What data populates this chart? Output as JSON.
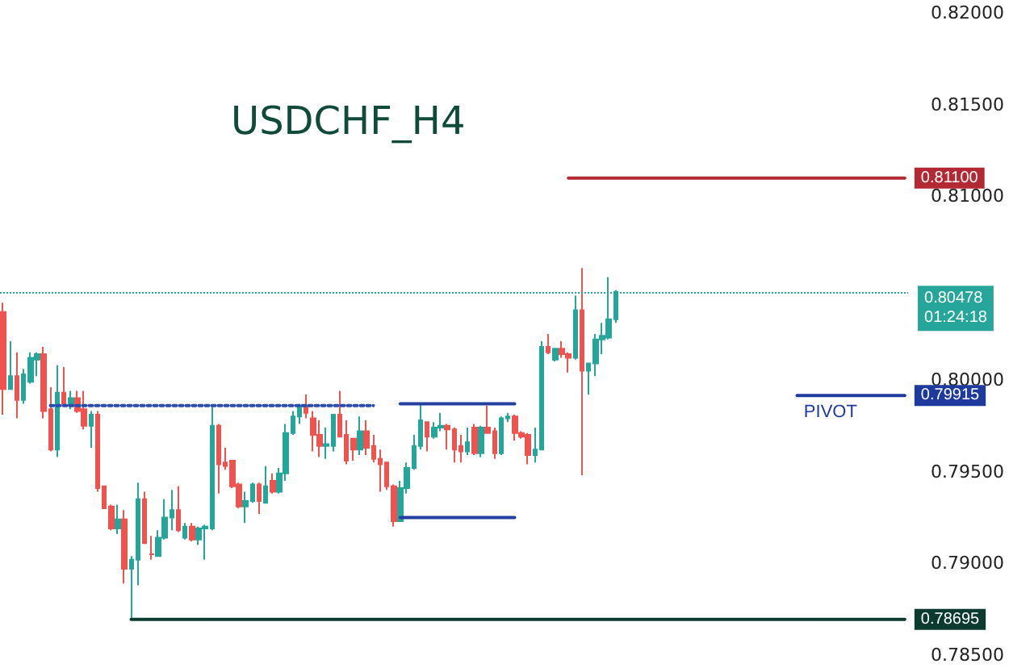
{
  "chart_data": {
    "type": "candlestick",
    "title": "USDCHF_H4",
    "categories": [
      null,
      null,
      null,
      null,
      null,
      null,
      null,
      null,
      null,
      null,
      null,
      null,
      null,
      null,
      null,
      null,
      null,
      null,
      null,
      null,
      null,
      null,
      null,
      null,
      null,
      null,
      null,
      null,
      null,
      null,
      null,
      null,
      null,
      null,
      null,
      null,
      null,
      null,
      null,
      null,
      null,
      null,
      null,
      null,
      null,
      null,
      null,
      null,
      null,
      null,
      null,
      null,
      null,
      null,
      null,
      null,
      null,
      null,
      null,
      null,
      null,
      null,
      null,
      null,
      null,
      null,
      null,
      null,
      null,
      null,
      null,
      null,
      null,
      null,
      null,
      null,
      null,
      null,
      null,
      null,
      null,
      null,
      null,
      null,
      null,
      null,
      null,
      null,
      null,
      null,
      null,
      null,
      null,
      null,
      null,
      null,
      null,
      null,
      null,
      null,
      null,
      null,
      null,
      null,
      null,
      null,
      null,
      null,
      null,
      null,
      null,
      null,
      null,
      null,
      null,
      null,
      null,
      null,
      null,
      null,
      null,
      null,
      null,
      null,
      null,
      null,
      null,
      null,
      null,
      null,
      null,
      null,
      null,
      null,
      null
    ],
    "ohlc": [
      [
        0.8037,
        0.8042,
        0.7981,
        0.7995
      ],
      [
        0.7995,
        0.8021,
        0.7995,
        0.8002
      ],
      [
        0.8002,
        0.8015,
        0.7979,
        0.7989
      ],
      [
        0.7989,
        0.8006,
        0.7987,
        0.8003
      ],
      [
        0.7999,
        0.8015,
        0.7998,
        0.8012
      ],
      [
        0.8011,
        0.8015,
        0.8002,
        0.8014
      ],
      [
        0.8014,
        0.8018,
        0.7979,
        0.7983
      ],
      [
        0.7984,
        0.7996,
        0.7961,
        0.7962
      ],
      [
        0.7962,
        0.8008,
        0.7958,
        0.7993
      ],
      [
        0.7993,
        0.8007,
        0.7986,
        0.7987
      ],
      [
        0.7986,
        0.7994,
        0.7984,
        0.799
      ],
      [
        0.799,
        0.7994,
        0.7982,
        0.7983
      ],
      [
        0.7984,
        0.7994,
        0.7973,
        0.7975
      ],
      [
        0.7975,
        0.7983,
        0.7963,
        0.7981
      ],
      [
        0.7981,
        0.7983,
        0.7939,
        0.7941
      ],
      [
        0.7942,
        0.7942,
        0.793,
        0.793
      ],
      [
        0.7931,
        0.7932,
        0.7918,
        0.7919
      ],
      [
        0.7919,
        0.7932,
        0.7916,
        0.7924
      ],
      [
        0.7924,
        0.7929,
        0.7889,
        0.7897
      ],
      [
        0.7897,
        0.7904,
        0.787,
        0.7902
      ],
      [
        0.7902,
        0.7944,
        0.7888,
        0.7935
      ],
      [
        0.7935,
        0.7939,
        0.7911,
        0.7911
      ],
      [
        0.7905,
        0.7915,
        0.7902,
        0.7905
      ],
      [
        0.7904,
        0.7918,
        0.7904,
        0.7914
      ],
      [
        0.7914,
        0.7935,
        0.7913,
        0.7925
      ],
      [
        0.7925,
        0.794,
        0.7918,
        0.7929
      ],
      [
        0.7929,
        0.7942,
        0.7917,
        0.7918
      ],
      [
        0.7914,
        0.7922,
        0.7913,
        0.792
      ],
      [
        0.792,
        0.7922,
        0.7912,
        0.7913
      ],
      [
        0.7913,
        0.792,
        0.791,
        0.7919
      ],
      [
        0.7919,
        0.7921,
        0.7902,
        0.792
      ],
      [
        0.7919,
        0.7986,
        0.7918,
        0.7975
      ],
      [
        0.7975,
        0.7976,
        0.7938,
        0.7954
      ],
      [
        0.7955,
        0.7963,
        0.7951,
        0.7953
      ],
      [
        0.7956,
        0.7956,
        0.7941,
        0.7942
      ],
      [
        0.7943,
        0.7944,
        0.793,
        0.7931
      ],
      [
        0.7931,
        0.7939,
        0.7922,
        0.7934
      ],
      [
        0.7934,
        0.7944,
        0.7933,
        0.7943
      ],
      [
        0.7943,
        0.7944,
        0.7927,
        0.7934
      ],
      [
        0.7933,
        0.7953,
        0.7933,
        0.7942
      ],
      [
        0.7945,
        0.7949,
        0.7938,
        0.7939
      ],
      [
        0.7939,
        0.7952,
        0.7938,
        0.7949
      ],
      [
        0.7949,
        0.7976,
        0.7945,
        0.7971
      ],
      [
        0.7971,
        0.7983,
        0.797,
        0.798
      ],
      [
        0.798,
        0.7987,
        0.7976,
        0.7986
      ],
      [
        0.7986,
        0.7992,
        0.7979,
        0.7982
      ],
      [
        0.7979,
        0.7983,
        0.7961,
        0.797
      ],
      [
        0.797,
        0.7978,
        0.7958,
        0.7964
      ],
      [
        0.7964,
        0.7974,
        0.7957,
        0.7965
      ],
      [
        0.7964,
        0.7981,
        0.7961,
        0.7981
      ],
      [
        0.7981,
        0.7994,
        0.7969,
        0.7969
      ],
      [
        0.797,
        0.7978,
        0.7954,
        0.7956
      ],
      [
        0.7968,
        0.7968,
        0.7956,
        0.7962
      ],
      [
        0.7962,
        0.798,
        0.7959,
        0.7972
      ],
      [
        0.7972,
        0.7978,
        0.7959,
        0.7963
      ],
      [
        0.7964,
        0.797,
        0.7955,
        0.7957
      ],
      [
        0.7957,
        0.7962,
        0.7939,
        0.7954
      ],
      [
        0.7955,
        0.7955,
        0.794,
        0.7942
      ],
      [
        0.7942,
        0.7943,
        0.792,
        0.7923
      ],
      [
        0.7923,
        0.7945,
        0.7923,
        0.7941
      ],
      [
        0.7941,
        0.7955,
        0.7938,
        0.7952
      ],
      [
        0.7952,
        0.797,
        0.7951,
        0.7964
      ],
      [
        0.7964,
        0.7987,
        0.7962,
        0.7978
      ],
      [
        0.7977,
        0.7977,
        0.7961,
        0.7969
      ],
      [
        0.7969,
        0.7977,
        0.7968,
        0.7974
      ],
      [
        0.7974,
        0.7982,
        0.7972,
        0.7975
      ],
      [
        0.7975,
        0.7976,
        0.7962,
        0.7973
      ],
      [
        0.7973,
        0.7974,
        0.7955,
        0.7962
      ],
      [
        0.7964,
        0.797,
        0.7955,
        0.7961
      ],
      [
        0.7961,
        0.7974,
        0.7959,
        0.7966
      ],
      [
        0.7974,
        0.7976,
        0.7959,
        0.796
      ],
      [
        0.796,
        0.7975,
        0.7958,
        0.7974
      ],
      [
        0.7974,
        0.7986,
        0.7971,
        0.7971
      ],
      [
        0.7972,
        0.7974,
        0.7957,
        0.796
      ],
      [
        0.796,
        0.798,
        0.7959,
        0.7979
      ],
      [
        0.7979,
        0.7982,
        0.7977,
        0.798
      ],
      [
        0.798,
        0.7981,
        0.7967,
        0.7971
      ],
      [
        0.7971,
        0.7972,
        0.7968,
        0.7969
      ],
      [
        0.797,
        0.7971,
        0.7954,
        0.7959
      ],
      [
        0.7959,
        0.7974,
        0.7955,
        0.7962
      ],
      [
        0.7962,
        0.8021,
        0.7962,
        0.8018
      ],
      [
        0.8018,
        0.8025,
        0.8014,
        0.8015
      ],
      [
        0.8011,
        0.8017,
        0.801,
        0.8017
      ],
      [
        0.8017,
        0.8021,
        0.8012,
        0.8014
      ],
      [
        0.8014,
        0.8015,
        0.8004,
        0.8012
      ],
      [
        0.8012,
        0.8046,
        0.8011,
        0.8038
      ],
      [
        0.8038,
        0.8061,
        0.7948,
        0.8005
      ],
      [
        0.8005,
        0.8009,
        0.7992,
        0.8009
      ],
      [
        0.8009,
        0.8025,
        0.8002,
        0.8022
      ],
      [
        0.8022,
        0.8031,
        0.8014,
        0.8024
      ],
      [
        0.8023,
        0.8056,
        0.8022,
        0.8033
      ],
      [
        0.8033,
        0.8049,
        0.8031,
        0.8048
      ],
      null,
      null,
      null,
      null,
      null,
      null,
      null,
      null,
      null,
      null,
      null,
      null,
      null,
      null,
      null,
      null,
      null,
      null,
      null,
      null,
      null,
      null,
      null,
      null,
      null,
      null,
      null,
      null,
      null,
      null,
      null,
      null,
      null,
      null,
      null,
      null,
      null,
      null,
      null,
      null,
      null,
      null,
      null
    ],
    "series": [
      {
        "type": "line",
        "color": "#2b4bb0",
        "line_style": "dotted",
        "values": [
          null,
          null,
          null,
          null,
          null,
          null,
          null,
          0.7986,
          0.7986,
          0.7986,
          0.7986,
          0.7986,
          0.7986,
          0.7986,
          0.7986,
          0.7986,
          0.7986,
          0.7986,
          0.7986,
          0.7986,
          0.7986,
          0.7986,
          0.7986,
          0.7986,
          0.7986,
          0.7986,
          0.7986,
          0.7986,
          0.7986,
          0.7986,
          0.7986,
          0.7986,
          0.7986,
          0.7986,
          0.7986,
          0.7986,
          0.7986,
          0.7986,
          0.7986,
          0.7986,
          0.7986,
          0.7986,
          0.7986,
          0.7986,
          0.7986,
          0.7986,
          0.7986,
          0.7986,
          0.7986,
          0.7986,
          0.7986,
          0.7986,
          0.7986,
          0.7986,
          0.7986,
          0.7986,
          null,
          null,
          null,
          null,
          null,
          null,
          null,
          null,
          null,
          null,
          null,
          null,
          null,
          null,
          null,
          null,
          null,
          null,
          null,
          null,
          null,
          null,
          null,
          null,
          null,
          null,
          null,
          null,
          null,
          null,
          null,
          null,
          null,
          null,
          null,
          null,
          null,
          null,
          null,
          null,
          null,
          null,
          null,
          null,
          null,
          null,
          null,
          null,
          null,
          null,
          null,
          null,
          null,
          null,
          null,
          null,
          null,
          null,
          null,
          null,
          null,
          null,
          null,
          null,
          null,
          null,
          null,
          null,
          null,
          null,
          null,
          null,
          null,
          null,
          null,
          null,
          null,
          null,
          null
        ]
      },
      {
        "type": "line",
        "color": "#2340a0",
        "line_style": "solid",
        "values": [
          null,
          null,
          null,
          null,
          null,
          null,
          null,
          null,
          null,
          null,
          null,
          null,
          null,
          null,
          null,
          null,
          null,
          null,
          null,
          null,
          null,
          null,
          null,
          null,
          null,
          null,
          null,
          null,
          null,
          null,
          null,
          null,
          null,
          null,
          null,
          null,
          null,
          null,
          null,
          null,
          null,
          null,
          null,
          null,
          null,
          null,
          null,
          null,
          null,
          null,
          null,
          null,
          null,
          null,
          null,
          null,
          null,
          null,
          null,
          0.7987,
          0.7987,
          0.7987,
          0.7987,
          0.7987,
          0.7987,
          0.7987,
          0.7987,
          0.7987,
          0.7987,
          0.7987,
          0.7987,
          0.7987,
          0.7987,
          0.7987,
          0.7987,
          0.7987,
          0.7987,
          null,
          null,
          null,
          null,
          null,
          null,
          null,
          null,
          null,
          null,
          null,
          null,
          null,
          null,
          null,
          null,
          null,
          null,
          null,
          null,
          null,
          null,
          null,
          null,
          null,
          null,
          null,
          null,
          null,
          null,
          null,
          null,
          null,
          null,
          null,
          null,
          null,
          null,
          null,
          null,
          null,
          null,
          null,
          null,
          null,
          null,
          null,
          null,
          null,
          null,
          null,
          null,
          null,
          null,
          null,
          null,
          null,
          null
        ]
      },
      {
        "type": "line",
        "color": "#2340a0",
        "line_style": "solid",
        "values": [
          null,
          null,
          null,
          null,
          null,
          null,
          null,
          null,
          null,
          null,
          null,
          null,
          null,
          null,
          null,
          null,
          null,
          null,
          null,
          null,
          null,
          null,
          null,
          null,
          null,
          null,
          null,
          null,
          null,
          null,
          null,
          null,
          null,
          null,
          null,
          null,
          null,
          null,
          null,
          null,
          null,
          null,
          null,
          null,
          null,
          null,
          null,
          null,
          null,
          null,
          null,
          null,
          null,
          null,
          null,
          null,
          null,
          null,
          null,
          0.7925,
          0.7925,
          0.7925,
          0.7925,
          0.7925,
          0.7925,
          0.7925,
          0.7925,
          0.7925,
          0.7925,
          0.7925,
          0.7925,
          0.7925,
          0.7925,
          0.7925,
          0.7925,
          0.7925,
          0.7925,
          null,
          null,
          null,
          null,
          null,
          null,
          null,
          null,
          null,
          null,
          null,
          null,
          null,
          null,
          null,
          null,
          null,
          null,
          null,
          null,
          null,
          null,
          null,
          null,
          null,
          null,
          null,
          null,
          null,
          null,
          null,
          null,
          null,
          null,
          null,
          null,
          null,
          null,
          null,
          null,
          null,
          null,
          null,
          null,
          null,
          null,
          null,
          null,
          null,
          null,
          null,
          null,
          null,
          null,
          null,
          null,
          null,
          null
        ]
      },
      {
        "type": "line",
        "color": "#b22833",
        "line_style": "solid",
        "values": [
          null,
          null,
          null,
          null,
          null,
          null,
          null,
          null,
          null,
          null,
          null,
          null,
          null,
          null,
          null,
          null,
          null,
          null,
          null,
          null,
          null,
          null,
          null,
          null,
          null,
          null,
          null,
          null,
          null,
          null,
          null,
          null,
          null,
          null,
          null,
          null,
          null,
          null,
          null,
          null,
          null,
          null,
          null,
          null,
          null,
          null,
          null,
          null,
          null,
          null,
          null,
          null,
          null,
          null,
          null,
          null,
          null,
          null,
          null,
          null,
          null,
          null,
          null,
          null,
          null,
          null,
          null,
          null,
          null,
          null,
          null,
          null,
          null,
          null,
          null,
          null,
          null,
          null,
          null,
          null,
          null,
          null,
          null,
          null,
          0.811,
          0.811,
          0.811,
          0.811,
          0.811,
          0.811,
          0.811,
          0.811,
          0.811,
          0.811,
          0.811,
          0.811,
          0.811,
          0.811,
          0.811,
          0.811,
          0.811,
          0.811,
          0.811,
          0.811,
          0.811,
          0.811,
          0.811,
          0.811,
          0.811,
          0.811,
          0.811,
          0.811,
          0.811,
          0.811,
          0.811,
          0.811,
          0.811,
          0.811,
          0.811,
          0.811,
          0.811,
          0.811,
          0.811,
          0.811,
          0.811,
          0.811,
          0.811,
          0.811,
          0.811,
          0.811,
          0.811,
          0.811,
          0.811,
          0.811,
          0.811
        ],
        "value_labels": [
          null,
          null,
          null,
          null,
          null,
          null,
          null,
          null,
          null,
          null,
          null,
          null,
          null,
          null,
          null,
          null,
          null,
          null,
          null,
          null,
          null,
          null,
          null,
          null,
          null,
          null,
          null,
          null,
          null,
          null,
          null,
          null,
          null,
          null,
          null,
          null,
          null,
          null,
          null,
          null,
          null,
          null,
          null,
          null,
          null,
          null,
          null,
          null,
          null,
          null,
          null,
          null,
          null,
          null,
          null,
          null,
          null,
          null,
          null,
          null,
          null,
          null,
          null,
          null,
          null,
          null,
          null,
          null,
          null,
          null,
          null,
          null,
          null,
          null,
          null,
          null,
          null,
          null,
          null,
          null,
          null,
          null,
          null,
          null,
          null,
          null,
          null,
          null,
          null,
          null,
          null,
          null,
          null,
          null,
          null,
          null,
          null,
          null,
          null,
          null,
          null,
          null,
          null,
          null,
          null,
          null,
          null,
          null,
          null,
          null,
          null,
          null,
          null,
          null,
          null,
          null,
          null,
          null,
          null,
          null,
          null,
          null,
          null,
          null,
          null,
          null,
          null,
          null,
          null,
          null,
          null,
          null,
          null,
          null,
          "0.81100"
        ]
      },
      {
        "type": "line",
        "color": "#1e3a9e",
        "line_style": "solid",
        "values": [
          null,
          null,
          null,
          null,
          null,
          null,
          null,
          null,
          null,
          null,
          null,
          null,
          null,
          null,
          null,
          null,
          null,
          null,
          null,
          null,
          null,
          null,
          null,
          null,
          null,
          null,
          null,
          null,
          null,
          null,
          null,
          null,
          null,
          null,
          null,
          null,
          null,
          null,
          null,
          null,
          null,
          null,
          null,
          null,
          null,
          null,
          null,
          null,
          null,
          null,
          null,
          null,
          null,
          null,
          null,
          null,
          null,
          null,
          null,
          null,
          null,
          null,
          null,
          null,
          null,
          null,
          null,
          null,
          null,
          null,
          null,
          null,
          null,
          null,
          null,
          null,
          null,
          null,
          null,
          null,
          null,
          null,
          null,
          null,
          null,
          null,
          null,
          null,
          null,
          null,
          null,
          null,
          null,
          null,
          null,
          null,
          null,
          null,
          null,
          null,
          null,
          null,
          null,
          null,
          null,
          null,
          null,
          null,
          null,
          null,
          null,
          null,
          null,
          null,
          null,
          null,
          null,
          null,
          0.79915,
          0.79915,
          0.79915,
          0.79915,
          0.79915,
          0.79915,
          0.79915,
          0.79915,
          0.79915,
          0.79915,
          0.79915,
          0.79915,
          0.79915,
          0.79915,
          0.79915,
          0.79915,
          0.79915
        ],
        "value_labels": [
          null,
          null,
          null,
          null,
          null,
          null,
          null,
          null,
          null,
          null,
          null,
          null,
          null,
          null,
          null,
          null,
          null,
          null,
          null,
          null,
          null,
          null,
          null,
          null,
          null,
          null,
          null,
          null,
          null,
          null,
          null,
          null,
          null,
          null,
          null,
          null,
          null,
          null,
          null,
          null,
          null,
          null,
          null,
          null,
          null,
          null,
          null,
          null,
          null,
          null,
          null,
          null,
          null,
          null,
          null,
          null,
          null,
          null,
          null,
          null,
          null,
          null,
          null,
          null,
          null,
          null,
          null,
          null,
          null,
          null,
          null,
          null,
          null,
          null,
          null,
          null,
          null,
          null,
          null,
          null,
          null,
          null,
          null,
          null,
          null,
          null,
          null,
          null,
          null,
          null,
          null,
          null,
          null,
          null,
          null,
          null,
          null,
          null,
          null,
          null,
          null,
          null,
          null,
          null,
          null,
          null,
          null,
          null,
          null,
          null,
          null,
          null,
          null,
          null,
          null,
          null,
          null,
          null,
          null,
          "PIVOT",
          null,
          null,
          null,
          null,
          null,
          null,
          null,
          null,
          null,
          null,
          null,
          null,
          null,
          null,
          "0.79915"
        ]
      },
      {
        "type": "line",
        "color": "#0b3b2e",
        "line_style": "solid",
        "values": [
          null,
          null,
          null,
          null,
          null,
          null,
          null,
          null,
          null,
          null,
          null,
          null,
          null,
          null,
          null,
          null,
          null,
          null,
          null,
          0.78695,
          0.78695,
          0.78695,
          0.78695,
          0.78695,
          0.78695,
          0.78695,
          0.78695,
          0.78695,
          0.78695,
          0.78695,
          0.78695,
          0.78695,
          0.78695,
          0.78695,
          0.78695,
          0.78695,
          0.78695,
          0.78695,
          0.78695,
          0.78695,
          0.78695,
          0.78695,
          0.78695,
          0.78695,
          0.78695,
          0.78695,
          0.78695,
          0.78695,
          0.78695,
          0.78695,
          0.78695,
          0.78695,
          0.78695,
          0.78695,
          0.78695,
          0.78695,
          0.78695,
          0.78695,
          0.78695,
          0.78695,
          0.78695,
          0.78695,
          0.78695,
          0.78695,
          0.78695,
          0.78695,
          0.78695,
          0.78695,
          0.78695,
          0.78695,
          0.78695,
          0.78695,
          0.78695,
          0.78695,
          0.78695,
          0.78695,
          0.78695,
          0.78695,
          0.78695,
          0.78695,
          0.78695,
          0.78695,
          0.78695,
          0.78695,
          0.78695,
          0.78695,
          0.78695,
          0.78695,
          0.78695,
          0.78695,
          0.78695,
          0.78695,
          0.78695,
          0.78695,
          0.78695,
          0.78695,
          0.78695,
          0.78695,
          0.78695,
          0.78695,
          0.78695,
          0.78695,
          0.78695,
          0.78695,
          0.78695,
          0.78695,
          0.78695,
          0.78695,
          0.78695,
          0.78695,
          0.78695,
          0.78695,
          0.78695,
          0.78695,
          0.78695,
          0.78695,
          0.78695,
          0.78695,
          0.78695,
          0.78695,
          0.78695,
          0.78695,
          0.78695,
          0.78695,
          0.78695,
          0.78695,
          0.78695,
          0.78695,
          0.78695,
          0.78695,
          0.78695,
          0.78695,
          0.78695,
          0.78695,
          0.78695
        ],
        "value_labels": [
          null,
          null,
          null,
          null,
          null,
          null,
          null,
          null,
          null,
          null,
          null,
          null,
          null,
          null,
          null,
          null,
          null,
          null,
          null,
          null,
          null,
          null,
          null,
          null,
          null,
          null,
          null,
          null,
          null,
          null,
          null,
          null,
          null,
          null,
          null,
          null,
          null,
          null,
          null,
          null,
          null,
          null,
          null,
          null,
          null,
          null,
          null,
          null,
          null,
          null,
          null,
          null,
          null,
          null,
          null,
          null,
          null,
          null,
          null,
          null,
          null,
          null,
          null,
          null,
          null,
          null,
          null,
          null,
          null,
          null,
          null,
          null,
          null,
          null,
          null,
          null,
          null,
          null,
          null,
          null,
          null,
          null,
          null,
          null,
          null,
          null,
          null,
          null,
          null,
          null,
          null,
          null,
          null,
          null,
          null,
          null,
          null,
          null,
          null,
          null,
          null,
          null,
          null,
          null,
          null,
          null,
          null,
          null,
          null,
          null,
          null,
          null,
          null,
          null,
          null,
          null,
          null,
          null,
          null,
          null,
          null,
          null,
          null,
          null,
          null,
          null,
          null,
          null,
          null,
          null,
          null,
          null,
          null,
          null,
          "0.78695"
        ]
      }
    ],
    "ref_lines": [
      {
        "axis": "y",
        "value": 0.80478,
        "label": "0.80478\n01:24:18",
        "color": "#26a69a",
        "line_style": "dotted"
      }
    ],
    "ylim": [
      0.785,
      0.82
    ],
    "yticks": [
      {
        "value": 0.785,
        "label": "0.78500"
      },
      {
        "value": 0.79,
        "label": "0.79000"
      },
      {
        "value": 0.795,
        "label": "0.79500"
      },
      {
        "value": 0.8,
        "label": "0.80000"
      },
      {
        "value": 0.805,
        "label": null
      },
      {
        "value": 0.81,
        "label": "0.81000"
      },
      {
        "value": 0.815,
        "label": "0.81500"
      },
      {
        "value": 0.82,
        "label": "0.82000"
      }
    ],
    "tick_labels": "y",
    "grid": false
  }
}
